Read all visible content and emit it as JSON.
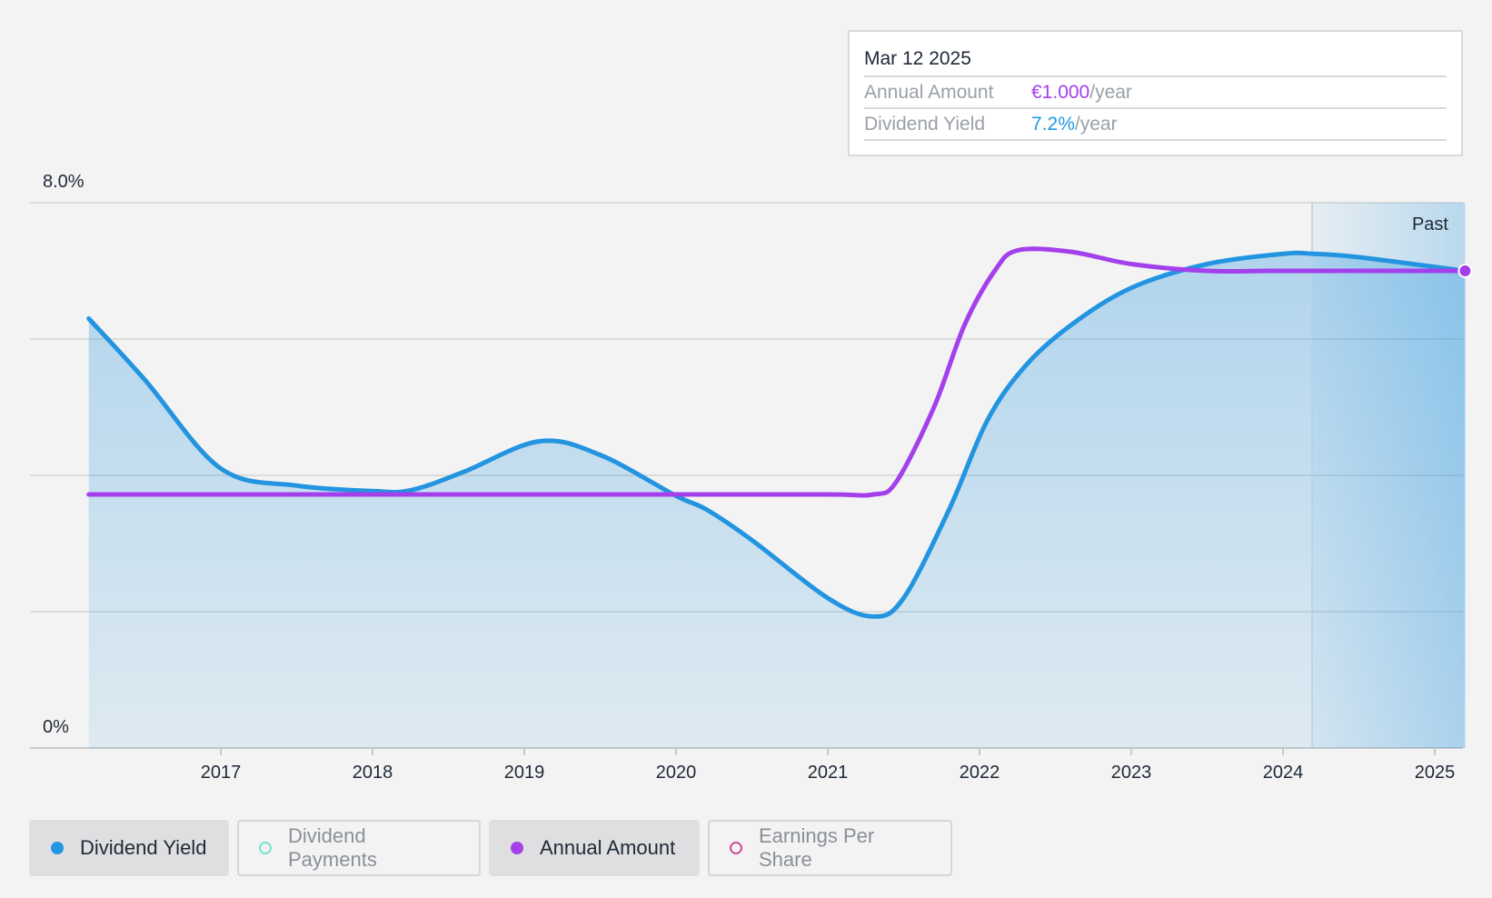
{
  "colors": {
    "yield": "#2394e0",
    "annual": "#a340ec",
    "payments": "#7fe0d8",
    "eps": "#d0508e"
  },
  "tooltip": {
    "date": "Mar 12 2025",
    "amount_label": "Annual Amount",
    "amount_value": "€1.000",
    "amount_unit": "/year",
    "yield_label": "Dividend Yield",
    "yield_value": "7.2%",
    "yield_unit": "/year"
  },
  "legend": {
    "yield": "Dividend Yield",
    "payments": "Dividend Payments",
    "annual": "Annual Amount",
    "eps": "Earnings Per Share"
  },
  "chart_data": {
    "type": "area",
    "ylim": [
      0,
      8.0
    ],
    "y_tick_labels": [
      "8.0%",
      "0%"
    ],
    "x_tick_labels": [
      "2017",
      "2018",
      "2019",
      "2020",
      "2021",
      "2022",
      "2023",
      "2024",
      "2025"
    ],
    "region_label": "Past",
    "series": [
      {
        "name": "Dividend Yield",
        "color": "#2394e0",
        "x": [
          2016.13,
          2016.5,
          2017.0,
          2017.5,
          2018.0,
          2018.25,
          2018.6,
          2019.1,
          2019.5,
          2020.0,
          2020.2,
          2020.5,
          2021.0,
          2021.3,
          2021.5,
          2021.8,
          2022.05,
          2022.3,
          2022.6,
          2023.0,
          2023.5,
          2024.0,
          2024.2,
          2024.5,
          2025.2
        ],
        "values": [
          6.3,
          5.4,
          4.1,
          3.85,
          3.77,
          3.78,
          4.05,
          4.5,
          4.3,
          3.7,
          3.5,
          3.05,
          2.2,
          1.93,
          2.2,
          3.5,
          4.8,
          5.6,
          6.2,
          6.75,
          7.1,
          7.25,
          7.25,
          7.2,
          7.0
        ]
      },
      {
        "name": "Annual Amount",
        "color": "#a340ec",
        "x": [
          2016.13,
          2016.5,
          2017.0,
          2018.0,
          2019.0,
          2020.0,
          2021.0,
          2021.3,
          2021.45,
          2021.7,
          2021.9,
          2022.1,
          2022.25,
          2022.6,
          2023.0,
          2023.5,
          2024.0,
          2025.2
        ],
        "values": [
          3.72,
          3.72,
          3.72,
          3.72,
          3.72,
          3.72,
          3.72,
          3.72,
          3.9,
          5.0,
          6.2,
          7.0,
          7.3,
          7.28,
          7.1,
          7.0,
          7.0,
          7.0
        ]
      }
    ],
    "grid": true,
    "legend_position": "bottom-left"
  }
}
